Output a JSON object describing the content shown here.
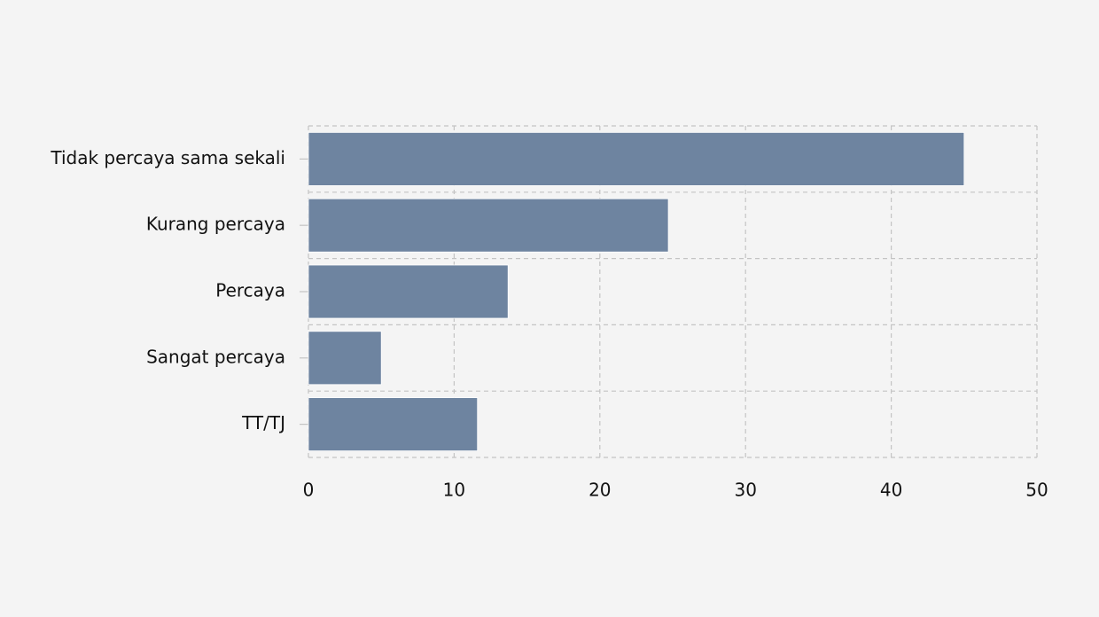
{
  "chart_data": {
    "type": "bar",
    "orientation": "horizontal",
    "categories": [
      "Tidak percaya sama sekali",
      "Kurang percaya",
      "Percaya",
      "Sangat percaya",
      "TT/TJ"
    ],
    "values": [
      45,
      24.7,
      13.7,
      5,
      11.6
    ],
    "color": "#6e84a0",
    "xlim": [
      0,
      50
    ],
    "xticks": [
      0,
      10,
      20,
      30,
      40,
      50
    ],
    "grid": true
  }
}
